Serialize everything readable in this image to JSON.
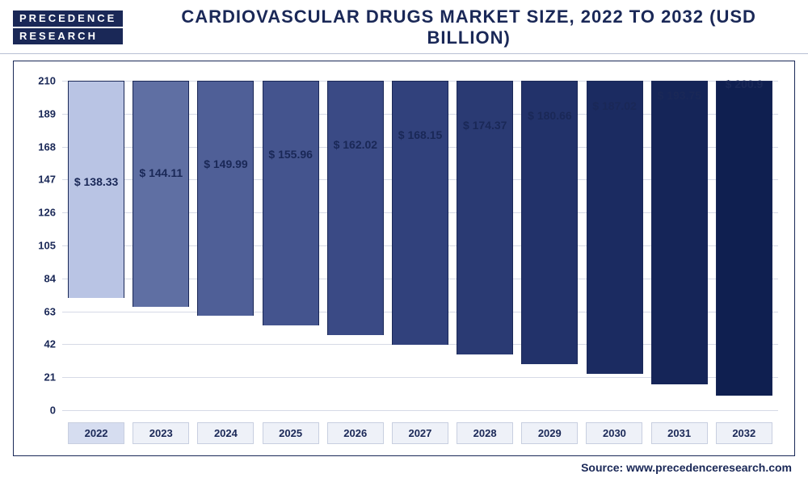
{
  "logo": {
    "line1": "PRECEDENCE",
    "line2": "RESEARCH"
  },
  "title": "CARDIOVASCULAR DRUGS MARKET SIZE, 2022 TO 2032 (USD BILLION)",
  "source": "Source: www.precedenceresearch.com",
  "chart": {
    "type": "bar",
    "ylim": [
      0,
      210
    ],
    "ytick_step": 21,
    "grid_color": "#d6dae6",
    "background_color": "#ffffff",
    "border_color": "#1a2857",
    "bar_border_color": "#1a2857",
    "title_color": "#1a2857",
    "label_fontsize": 14,
    "tick_fontsize": 13,
    "bar_width": 0.72,
    "categories": [
      "2022",
      "2023",
      "2024",
      "2025",
      "2026",
      "2027",
      "2028",
      "2029",
      "2030",
      "2031",
      "2032"
    ],
    "values": [
      138.33,
      144.11,
      149.99,
      155.96,
      162.02,
      168.15,
      174.37,
      180.66,
      187.02,
      193.75,
      200.9
    ],
    "value_labels": [
      "$ 138.33",
      "$ 144.11",
      "$ 149.99",
      "$ 155.96",
      "$ 162.02",
      "$ 168.15",
      "$ 174.37",
      "$ 180.66",
      "$ 187.02",
      "$ 193.75",
      "$ 200.9"
    ],
    "bar_colors": [
      "#b9c4e4",
      "#5f6fa3",
      "#4f5f97",
      "#44548e",
      "#3a4a85",
      "#31417c",
      "#2a3a73",
      "#22326a",
      "#1b2b61",
      "#152558",
      "#0f1f50"
    ],
    "xtick_highlight_index": 0,
    "xtick_highlight_bg": "#d6ddf0",
    "xtick_bg": "#eef1f8"
  }
}
